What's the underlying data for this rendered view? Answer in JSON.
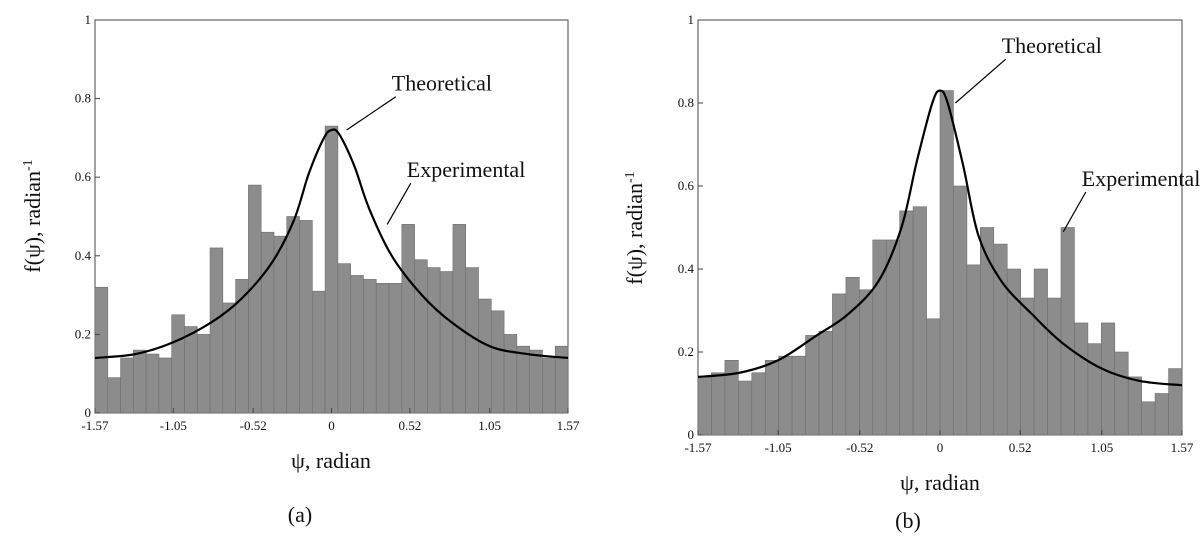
{
  "colors": {
    "bar": "#8c8c8c",
    "bar_edge": "#6e6e6e",
    "curve": "#000000",
    "axis": "#444444"
  },
  "chart_data": [
    {
      "type": "bar",
      "caption": "(a)",
      "xlabel": "ψ, radian",
      "ylabel": "f(ψ), radian",
      "ylabel_sup": "-1",
      "xlim": [
        -1.57,
        1.57
      ],
      "ylim": [
        0,
        1
      ],
      "xticks": [
        -1.57,
        -1.05,
        -0.52,
        0,
        0.52,
        1.05,
        1.57
      ],
      "xtick_labels": [
        "-1.57",
        "-1.05",
        "-0.52",
        "0",
        "0.52",
        "1.05",
        "1.57"
      ],
      "yticks": [
        0,
        0.2,
        0.4,
        0.6,
        0.8,
        1
      ],
      "ytick_labels": [
        "0",
        "0.2",
        "0.4",
        "0.6",
        "0.8",
        "1"
      ],
      "grid": false,
      "series": [
        {
          "name": "Experimental",
          "type": "bar",
          "values": [
            0.32,
            0.09,
            0.14,
            0.16,
            0.15,
            0.14,
            0.25,
            0.22,
            0.2,
            0.42,
            0.28,
            0.34,
            0.58,
            0.46,
            0.45,
            0.5,
            0.49,
            0.31,
            0.73,
            0.38,
            0.35,
            0.34,
            0.33,
            0.33,
            0.48,
            0.39,
            0.37,
            0.36,
            0.48,
            0.37,
            0.29,
            0.26,
            0.2,
            0.17,
            0.16,
            0.14,
            0.17
          ]
        },
        {
          "name": "Theoretical",
          "type": "line",
          "x": [
            -1.57,
            -1.3,
            -1.05,
            -0.8,
            -0.6,
            -0.4,
            -0.25,
            -0.15,
            -0.05,
            0,
            0.05,
            0.15,
            0.25,
            0.4,
            0.6,
            0.8,
            1.05,
            1.3,
            1.57
          ],
          "y": [
            0.14,
            0.15,
            0.18,
            0.23,
            0.29,
            0.38,
            0.49,
            0.61,
            0.7,
            0.72,
            0.71,
            0.63,
            0.52,
            0.4,
            0.3,
            0.23,
            0.17,
            0.15,
            0.14
          ]
        }
      ],
      "annotations": [
        {
          "text": "Theoretical",
          "x": 0.1,
          "y": 0.72,
          "tx": 0.4,
          "ty": 0.82
        },
        {
          "text": "Experimental",
          "x": 0.37,
          "y": 0.48,
          "tx": 0.5,
          "ty": 0.6
        }
      ]
    },
    {
      "type": "bar",
      "caption": "(b)",
      "xlabel": "ψ, radian",
      "ylabel": "f(ψ), radian",
      "ylabel_sup": "-1",
      "xlim": [
        -1.57,
        1.57
      ],
      "ylim": [
        0,
        1
      ],
      "xticks": [
        -1.57,
        -1.05,
        -0.52,
        0,
        0.52,
        1.05,
        1.57
      ],
      "xtick_labels": [
        "-1.57",
        "-1.05",
        "-0.52",
        "0",
        "0.52",
        "1.05",
        "1.57"
      ],
      "yticks": [
        0,
        0.2,
        0.4,
        0.6,
        0.8,
        1
      ],
      "ytick_labels": [
        "0",
        "0.2",
        "0.4",
        "0.6",
        "0.8",
        "1"
      ],
      "grid": false,
      "series": [
        {
          "name": "Experimental",
          "type": "bar",
          "values": [
            0.14,
            0.15,
            0.18,
            0.13,
            0.15,
            0.18,
            0.19,
            0.19,
            0.24,
            0.25,
            0.34,
            0.38,
            0.35,
            0.47,
            0.47,
            0.54,
            0.55,
            0.28,
            0.83,
            0.6,
            0.41,
            0.5,
            0.46,
            0.4,
            0.33,
            0.4,
            0.33,
            0.5,
            0.27,
            0.22,
            0.27,
            0.2,
            0.14,
            0.08,
            0.1,
            0.16
          ]
        },
        {
          "name": "Theoretical",
          "type": "line",
          "x": [
            -1.57,
            -1.3,
            -1.05,
            -0.8,
            -0.6,
            -0.4,
            -0.25,
            -0.15,
            -0.05,
            0,
            0.05,
            0.15,
            0.25,
            0.4,
            0.6,
            0.8,
            1.05,
            1.3,
            1.57
          ],
          "y": [
            0.14,
            0.15,
            0.18,
            0.24,
            0.29,
            0.37,
            0.5,
            0.66,
            0.8,
            0.83,
            0.8,
            0.65,
            0.48,
            0.37,
            0.29,
            0.22,
            0.16,
            0.13,
            0.12
          ]
        }
      ],
      "annotations": [
        {
          "text": "Theoretical",
          "x": 0.1,
          "y": 0.8,
          "tx": 0.4,
          "ty": 0.92
        },
        {
          "text": "Experimental",
          "x": 0.8,
          "y": 0.49,
          "tx": 0.92,
          "ty": 0.6
        }
      ]
    }
  ]
}
